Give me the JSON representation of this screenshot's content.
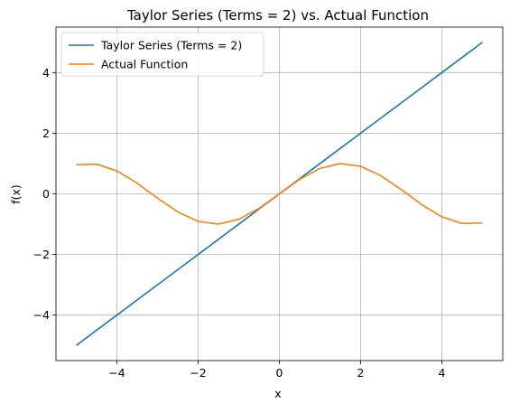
{
  "chart_data": {
    "type": "line",
    "title": "Taylor Series (Terms = 2) vs. Actual Function",
    "xlabel": "x",
    "ylabel": "f(x)",
    "xlim": [
      -5.5,
      5.5
    ],
    "ylim": [
      -5.5,
      5.5
    ],
    "x_ticks": [
      -4,
      -2,
      0,
      2,
      4
    ],
    "y_ticks": [
      -4,
      -2,
      0,
      2,
      4
    ],
    "x_tick_labels": [
      "−4",
      "−2",
      "0",
      "2",
      "4"
    ],
    "y_tick_labels": [
      "−4",
      "−2",
      "0",
      "2",
      "4"
    ],
    "grid": true,
    "legend_position": "top-left",
    "x": [
      -5.0,
      -4.5,
      -4.0,
      -3.5,
      -3.0,
      -2.5,
      -2.0,
      -1.5,
      -1.0,
      -0.5,
      0.0,
      0.5,
      1.0,
      1.5,
      2.0,
      2.5,
      3.0,
      3.5,
      4.0,
      4.5,
      5.0
    ],
    "series": [
      {
        "name": "Taylor Series (Terms = 2)",
        "color": "#1f77b4",
        "values": [
          -5.0,
          -4.5,
          -4.0,
          -3.5,
          -3.0,
          -2.5,
          -2.0,
          -1.5,
          -1.0,
          -0.5,
          0.0,
          0.5,
          1.0,
          1.5,
          2.0,
          2.5,
          3.0,
          3.5,
          4.0,
          4.5,
          5.0
        ]
      },
      {
        "name": "Actual Function",
        "color": "#ff7f0e",
        "values": [
          0.959,
          0.978,
          0.757,
          0.351,
          -0.141,
          -0.598,
          -0.909,
          -0.997,
          -0.841,
          -0.479,
          0.0,
          0.479,
          0.841,
          0.997,
          0.909,
          0.598,
          0.141,
          -0.351,
          -0.757,
          -0.978,
          -0.959
        ]
      }
    ]
  }
}
